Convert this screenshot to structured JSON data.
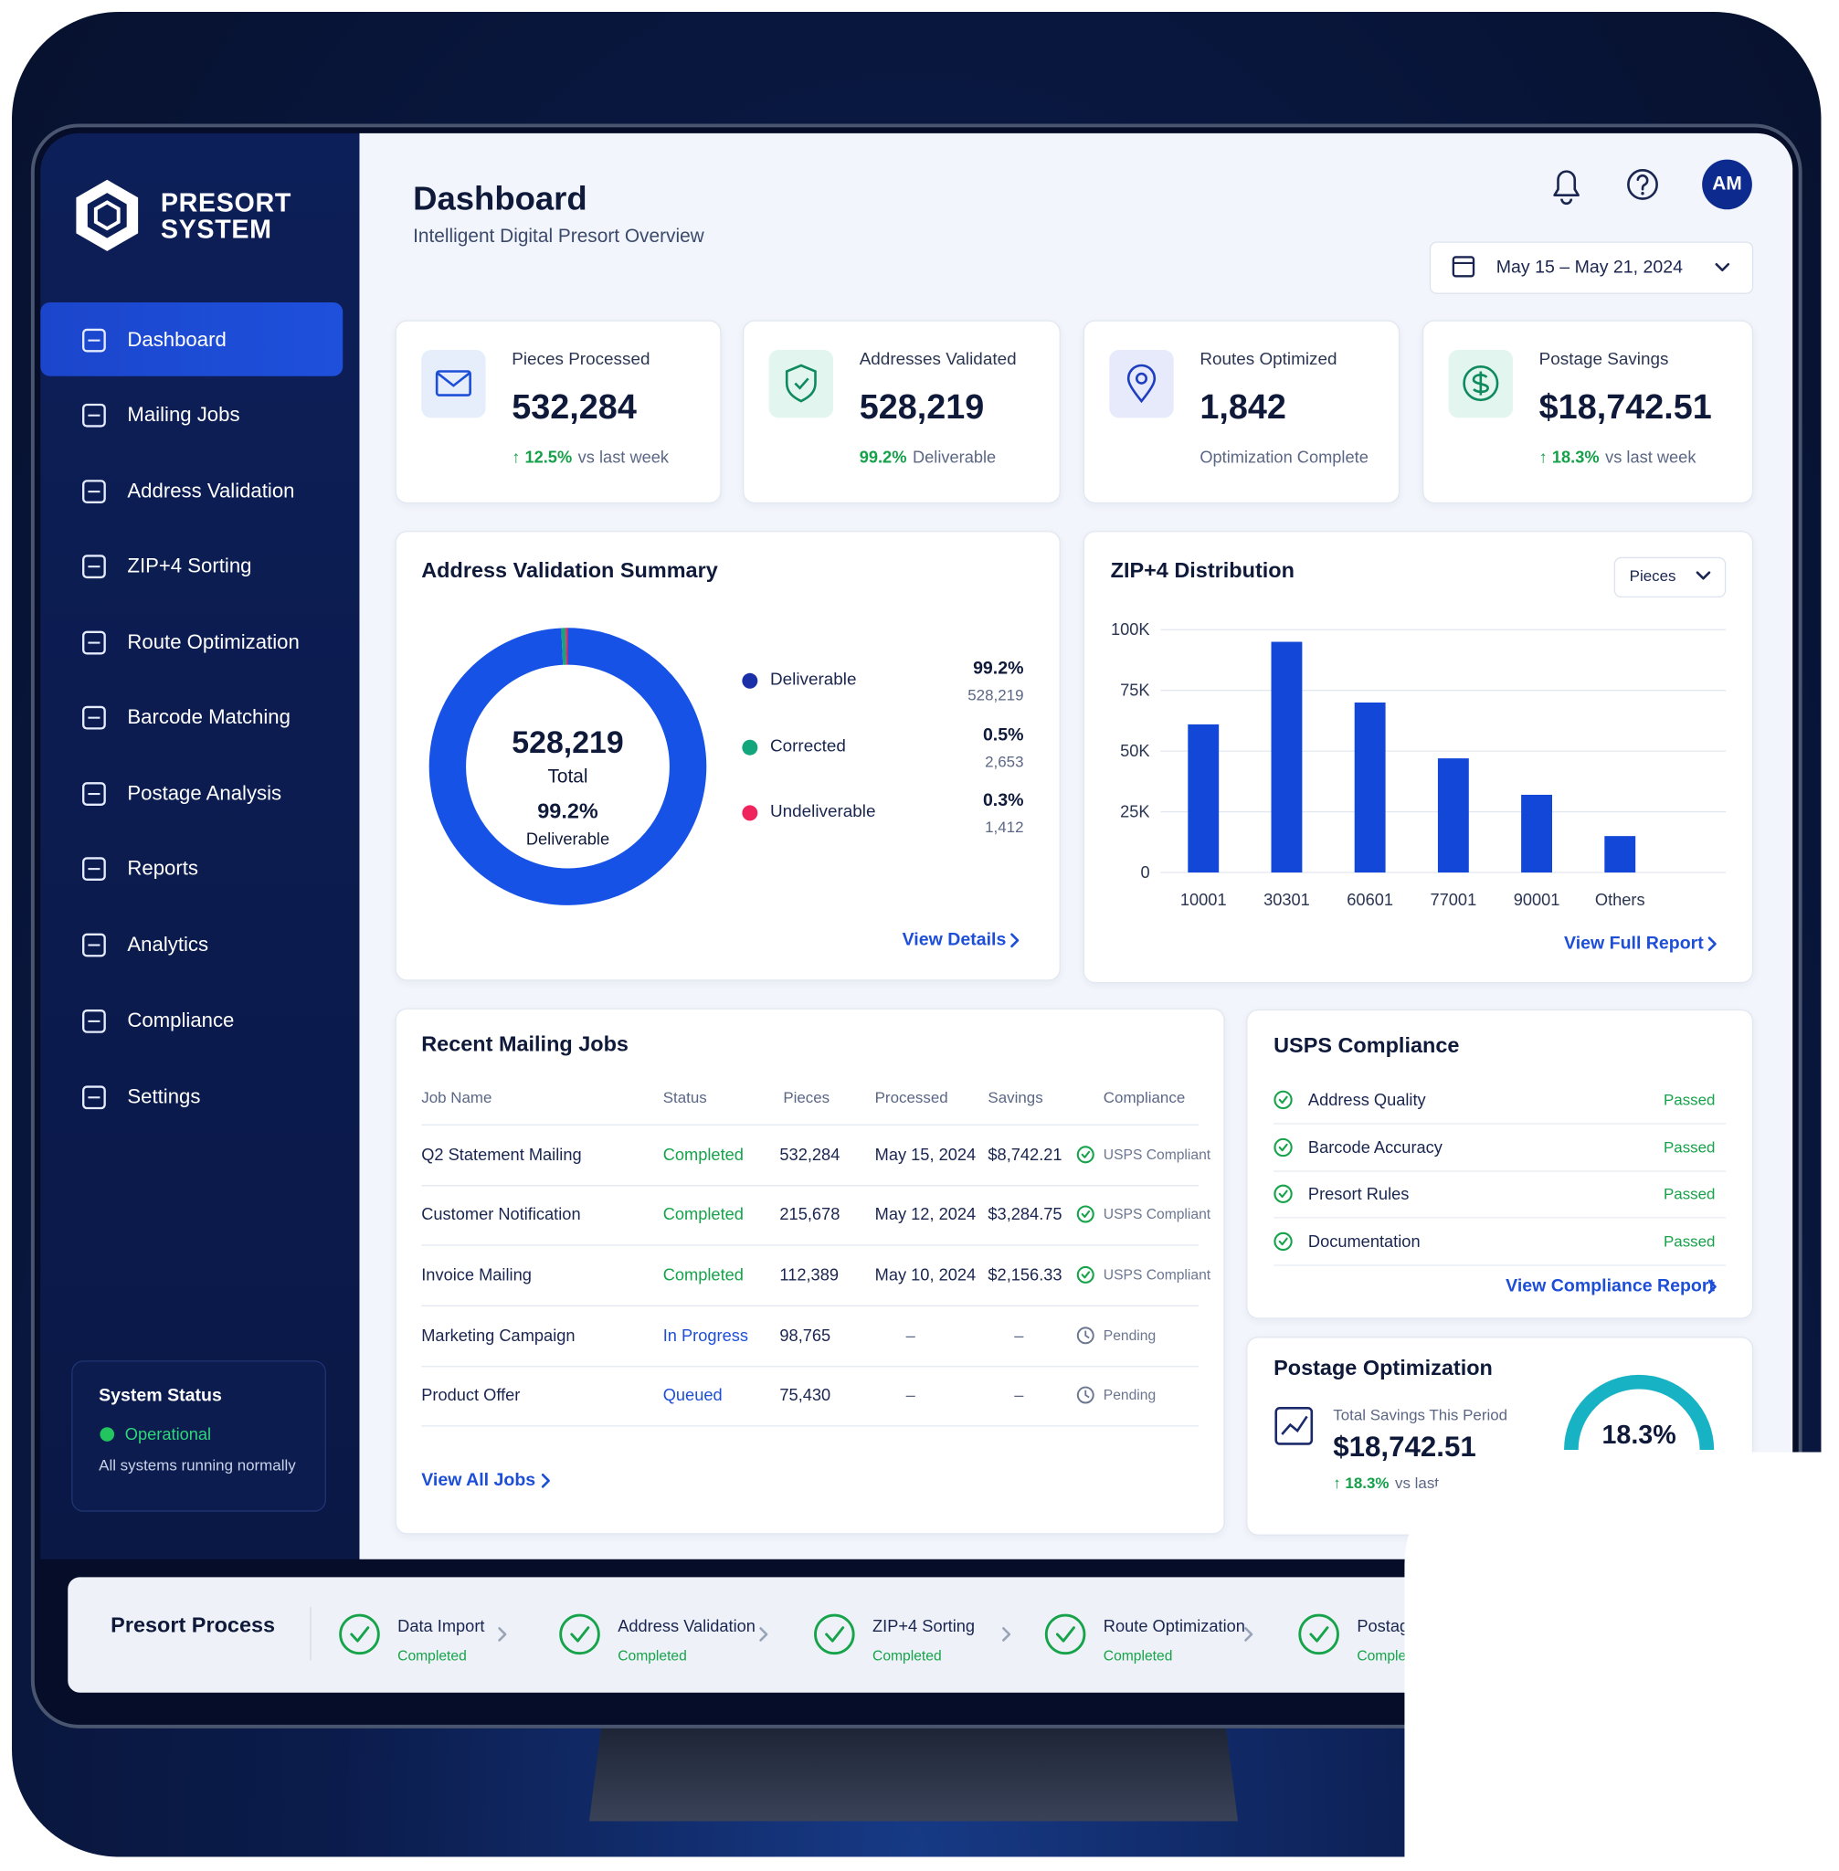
{
  "brand": {
    "line1": "PRESORT",
    "line2": "SYSTEM"
  },
  "nav": [
    "Dashboard",
    "Mailing Jobs",
    "Address Validation",
    "ZIP+4 Sorting",
    "Route Optimization",
    "Barcode Matching",
    "Postage Analysis",
    "Reports",
    "Analytics",
    "Compliance",
    "Settings"
  ],
  "system_status": {
    "title": "System Status",
    "state": "Operational",
    "note": "All systems running normally"
  },
  "header": {
    "title": "Dashboard",
    "subtitle": "Intelligent Digital Presort Overview",
    "avatar": "AM",
    "date_range": "May 15 – May 21, 2024"
  },
  "kpis": [
    {
      "label": "Pieces Processed",
      "value": "532,284",
      "delta": "↑ 12.5%",
      "note": "vs last week",
      "tint": "#e6eefc",
      "icon_color": "#1d4ed8"
    },
    {
      "label": "Addresses Validated",
      "value": "528,219",
      "delta": "99.2%",
      "note": "Deliverable",
      "tint": "#e2f5ee",
      "icon_color": "#0f8a5f"
    },
    {
      "label": "Routes Optimized",
      "value": "1,842",
      "note": "Optimization Complete",
      "tint": "#e6eafb",
      "icon_color": "#1d3fbf"
    },
    {
      "label": "Postage Savings",
      "value": "$18,742.51",
      "delta": "↑ 18.3%",
      "note": "vs last week",
      "tint": "#e2f5ee",
      "icon_color": "#0f8a5f"
    }
  ],
  "chart_data": [
    {
      "type": "pie",
      "title": "Address Validation Summary",
      "categories": [
        "Deliverable",
        "Corrected",
        "Undeliverable"
      ],
      "values": [
        99.2,
        0.5,
        0.3
      ],
      "value_labels": [
        "99.2%",
        "0.5%",
        "0.3%"
      ],
      "counts": [
        "528,219",
        "2,653",
        "1,412"
      ],
      "colors": [
        "#1652e6",
        "#12a67c",
        "#f0245c"
      ],
      "legend_colors": [
        "#1a2fa8",
        "#12a67c",
        "#f0245c"
      ],
      "center": {
        "value": "528,219",
        "label": "Total",
        "rate": "99.2%",
        "rate_label": "Deliverable"
      },
      "link": "View Details"
    },
    {
      "type": "bar",
      "title": "ZIP+4 Distribution",
      "control": "Pieces",
      "categories": [
        "10001",
        "30301",
        "60601",
        "77001",
        "90001",
        "Others"
      ],
      "values": [
        61000,
        95000,
        70000,
        47000,
        32000,
        15000
      ],
      "color": "#1347d8",
      "ylim": [
        0,
        100000
      ],
      "yticks": [
        0,
        {
          "value": 25000,
          "label": "25K"
        },
        {
          "value": 50000,
          "label": "50K"
        },
        {
          "value": 75000,
          "label": "75K"
        },
        {
          "value": 100000,
          "label": "100K"
        }
      ],
      "grid": true,
      "link": "View Full Report"
    }
  ],
  "jobs": {
    "title": "Recent Mailing Jobs",
    "columns": [
      "Job Name",
      "Status",
      "Pieces",
      "Processed",
      "Savings",
      "Compliance"
    ],
    "rows": [
      {
        "cells": [
          "Q2 Statement Mailing",
          "Completed",
          "532,284",
          "May 15, 2024",
          "$8,742.21",
          "USPS Compliant"
        ],
        "status_color": "#16a34a",
        "compliance_icon": "check"
      },
      {
        "cells": [
          "Customer Notification",
          "Completed",
          "215,678",
          "May 12, 2024",
          "$3,284.75",
          "USPS Compliant"
        ],
        "status_color": "#16a34a",
        "compliance_icon": "check"
      },
      {
        "cells": [
          "Invoice Mailing",
          "Completed",
          "112,389",
          "May 10, 2024",
          "$2,156.33",
          "USPS Compliant"
        ],
        "status_color": "#16a34a",
        "compliance_icon": "check"
      },
      {
        "cells": [
          "Marketing Campaign",
          "In Progress",
          "98,765",
          "–",
          "–",
          "Pending"
        ],
        "status_color": "#1d4ed8",
        "compliance_icon": "clock"
      },
      {
        "cells": [
          "Product Offer",
          "Queued",
          "75,430",
          "–",
          "–",
          "Pending"
        ],
        "status_color": "#1d4ed8",
        "compliance_icon": "clock"
      }
    ],
    "link": "View All Jobs"
  },
  "compliance": {
    "title": "USPS Compliance",
    "items": [
      {
        "label": "Address Quality",
        "status": "Passed"
      },
      {
        "label": "Barcode Accuracy",
        "status": "Passed"
      },
      {
        "label": "Presort Rules",
        "status": "Passed"
      },
      {
        "label": "Documentation",
        "status": "Passed"
      }
    ],
    "link": "View Compliance Report"
  },
  "postage_optimization": {
    "title": "Postage Optimization",
    "label": "Total Savings This Period",
    "value": "$18,742.51",
    "delta": "↑ 18.3%",
    "note": "vs last week",
    "rate": "18.3%"
  },
  "process": {
    "title": "Presort Process",
    "steps": [
      {
        "name": "Data Import",
        "status": "Completed"
      },
      {
        "name": "Address Validation",
        "status": "Completed"
      },
      {
        "name": "ZIP+4 Sorting",
        "status": "Completed"
      },
      {
        "name": "Route Optimization",
        "status": "Completed"
      },
      {
        "name": "Postage Optimization",
        "status": "Completed"
      }
    ]
  }
}
